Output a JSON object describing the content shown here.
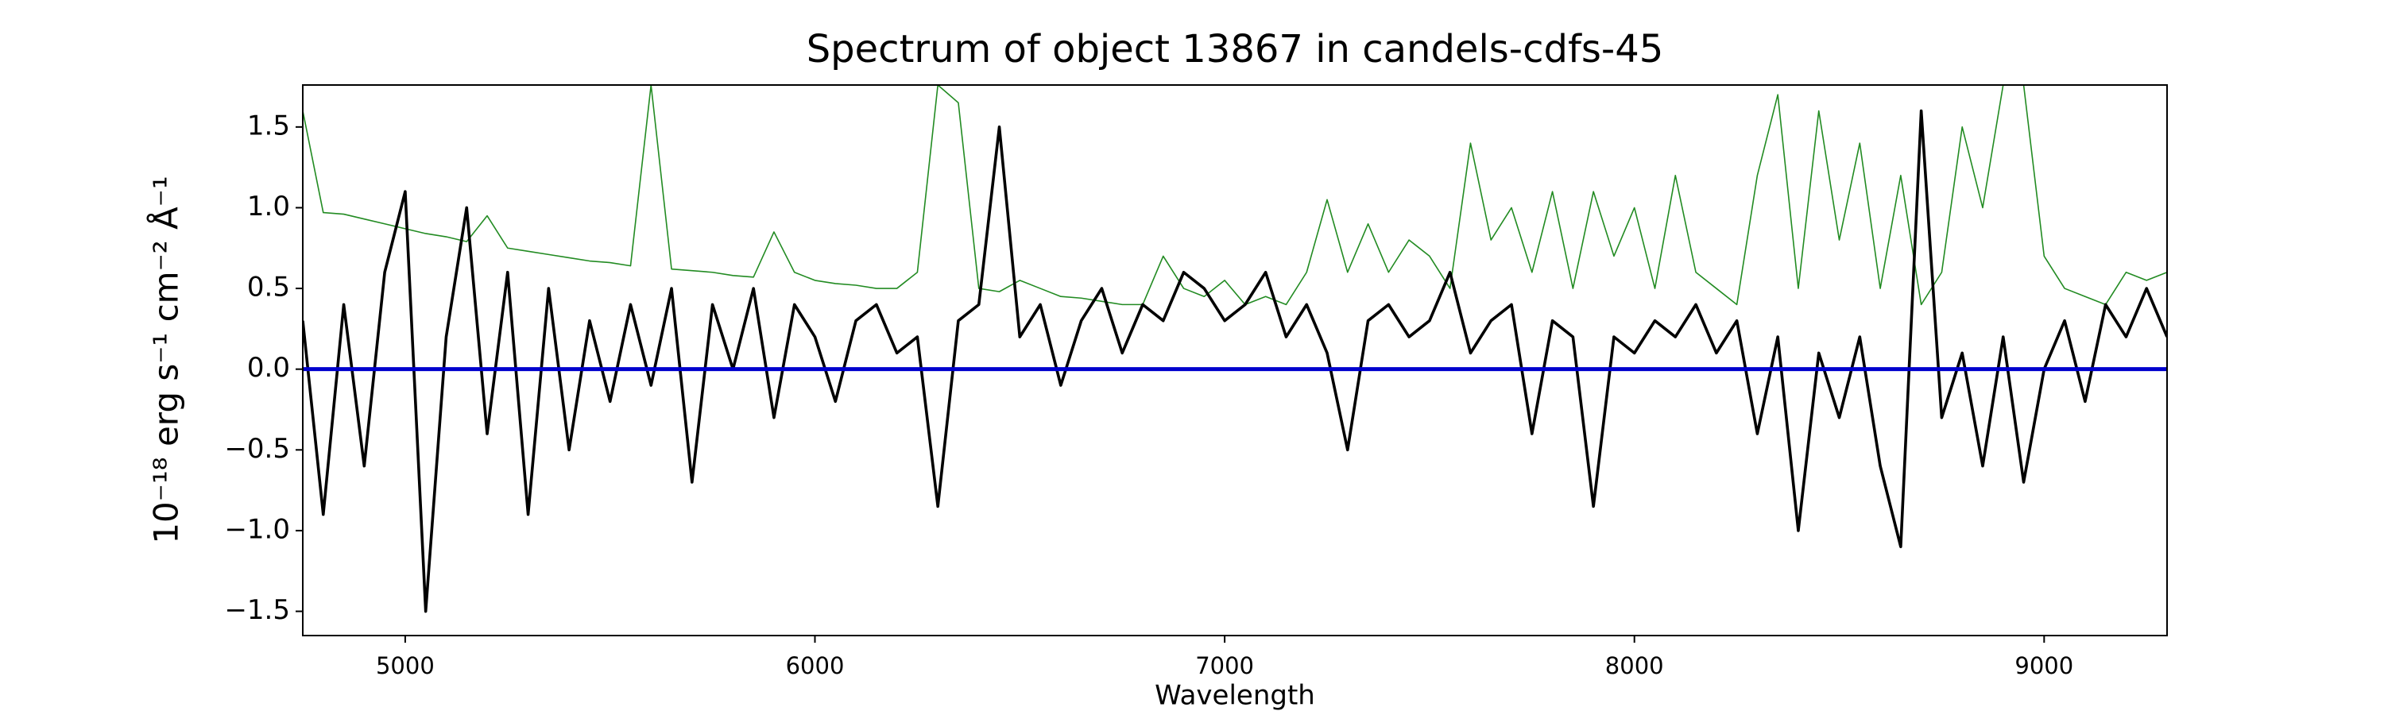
{
  "chart_data": {
    "type": "line",
    "title": "Spectrum of object 13867 in candels-cdfs-45",
    "x_label": "Wavelength",
    "y_label": "10⁻¹⁸ erg s⁻¹ cm⁻² Å⁻¹",
    "xlim": [
      4750,
      9300
    ],
    "ylim": [
      -1.65,
      1.76
    ],
    "xticks": [
      5000,
      6000,
      7000,
      8000,
      9000
    ],
    "yticks": [
      {
        "value": -1.5,
        "label": "−1.5"
      },
      {
        "value": -1.0,
        "label": "−1.0"
      },
      {
        "value": -0.5,
        "label": "−0.5"
      },
      {
        "value": 0,
        "label": "0.0"
      },
      0.5,
      {
        "value": 1.0,
        "label": "1.0"
      },
      1.5
    ],
    "grid": false,
    "series": [
      {
        "color": "#228b22",
        "width": 1.6,
        "x": [
          4750,
          4800,
          4850,
          4900,
          4950,
          5000,
          5050,
          5100,
          5150,
          5200,
          5250,
          5300,
          5350,
          5400,
          5450,
          5500,
          5550,
          5600,
          5650,
          5700,
          5750,
          5800,
          5850,
          5900,
          5950,
          6000,
          6050,
          6100,
          6150,
          6200,
          6250,
          6300,
          6350,
          6400,
          6450,
          6500,
          6550,
          6600,
          6650,
          6700,
          6750,
          6800,
          6850,
          6900,
          6950,
          7000,
          7050,
          7100,
          7150,
          7200,
          7250,
          7300,
          7350,
          7400,
          7450,
          7500,
          7550,
          7600,
          7650,
          7700,
          7750,
          7800,
          7850,
          7900,
          7950,
          8000,
          8050,
          8100,
          8150,
          8200,
          8250,
          8300,
          8350,
          8400,
          8450,
          8500,
          8550,
          8600,
          8650,
          8700,
          8750,
          8800,
          8850,
          8900,
          8950,
          9000,
          9050,
          9100,
          9150,
          9200,
          9250,
          9300
        ],
        "values": [
          1.6,
          0.97,
          0.96,
          0.93,
          0.9,
          0.87,
          0.84,
          0.82,
          0.79,
          0.95,
          0.75,
          0.73,
          0.71,
          0.69,
          0.67,
          0.66,
          0.64,
          1.76,
          0.62,
          0.61,
          0.6,
          0.58,
          0.57,
          0.85,
          0.6,
          0.55,
          0.53,
          0.52,
          0.5,
          0.5,
          0.6,
          1.76,
          1.65,
          0.5,
          0.48,
          0.55,
          0.5,
          0.45,
          0.44,
          0.42,
          0.4,
          0.4,
          0.7,
          0.5,
          0.45,
          0.55,
          0.4,
          0.45,
          0.4,
          0.6,
          1.05,
          0.6,
          0.9,
          0.6,
          0.8,
          0.7,
          0.5,
          1.4,
          0.8,
          1.0,
          0.6,
          1.1,
          0.5,
          1.1,
          0.7,
          1.0,
          0.5,
          1.2,
          0.6,
          0.5,
          0.4,
          1.2,
          1.7,
          0.5,
          1.6,
          0.8,
          1.4,
          0.5,
          1.2,
          0.4,
          0.6,
          1.5,
          1.0,
          1.76,
          1.76,
          0.7,
          0.5,
          0.45,
          0.4,
          0.6,
          0.55,
          0.6
        ]
      },
      {
        "color": "#000000",
        "width": 3.6,
        "x": [
          4750,
          4800,
          4850,
          4900,
          4950,
          5000,
          5050,
          5100,
          5150,
          5200,
          5250,
          5300,
          5350,
          5400,
          5450,
          5500,
          5550,
          5600,
          5650,
          5700,
          5750,
          5800,
          5850,
          5900,
          5950,
          6000,
          6050,
          6100,
          6150,
          6200,
          6250,
          6300,
          6350,
          6400,
          6450,
          6500,
          6550,
          6600,
          6650,
          6700,
          6750,
          6800,
          6850,
          6900,
          6950,
          7000,
          7050,
          7100,
          7150,
          7200,
          7250,
          7300,
          7350,
          7400,
          7450,
          7500,
          7550,
          7600,
          7650,
          7700,
          7750,
          7800,
          7850,
          7900,
          7950,
          8000,
          8050,
          8100,
          8150,
          8200,
          8250,
          8300,
          8350,
          8400,
          8450,
          8500,
          8550,
          8600,
          8650,
          8700,
          8750,
          8800,
          8850,
          8900,
          8950,
          9000,
          9050,
          9100,
          9150,
          9200,
          9250,
          9300
        ],
        "values": [
          0.3,
          -0.9,
          0.4,
          -0.6,
          0.6,
          1.1,
          -1.5,
          0.2,
          1.0,
          -0.4,
          0.6,
          -0.9,
          0.5,
          -0.5,
          0.3,
          -0.2,
          0.4,
          -0.1,
          0.5,
          -0.7,
          0.4,
          0.0,
          0.5,
          -0.3,
          0.4,
          0.2,
          -0.2,
          0.3,
          0.4,
          0.1,
          0.2,
          -0.85,
          0.3,
          0.4,
          1.5,
          0.2,
          0.4,
          -0.1,
          0.3,
          0.5,
          0.1,
          0.4,
          0.3,
          0.6,
          0.5,
          0.3,
          0.4,
          0.6,
          0.2,
          0.4,
          0.1,
          -0.5,
          0.3,
          0.4,
          0.2,
          0.3,
          0.6,
          0.1,
          0.3,
          0.4,
          -0.4,
          0.3,
          0.2,
          -0.85,
          0.2,
          0.1,
          0.3,
          0.2,
          0.4,
          0.1,
          0.3,
          -0.4,
          0.2,
          -1.0,
          0.1,
          -0.3,
          0.2,
          -0.6,
          -1.1,
          1.6,
          -0.3,
          0.1,
          -0.6,
          0.2,
          -0.7,
          0.0,
          0.3,
          -0.2,
          0.4,
          0.2,
          0.5,
          0.2
        ]
      },
      {
        "color": "#0000cd",
        "width": 5,
        "x": [
          4750,
          9300
        ],
        "values": [
          0,
          0
        ]
      }
    ]
  }
}
